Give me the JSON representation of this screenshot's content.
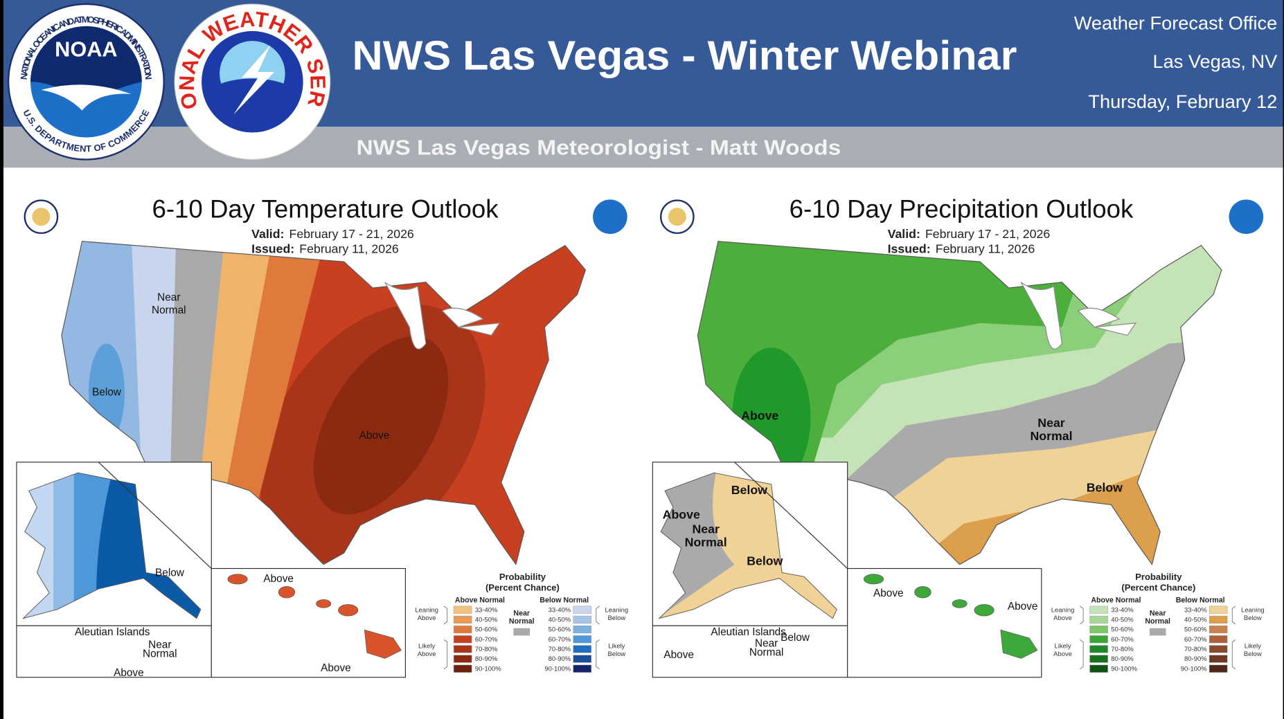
{
  "header": {
    "title": "NWS Las Vegas - Winter Webinar",
    "office": [
      "Weather Forecast Office",
      "Las Vegas, NV",
      "Thursday, February 12"
    ],
    "subtitle": "NWS Las Vegas Meteorologist - Matt Woods",
    "noaa_logo": {
      "name": "NOAA",
      "ring_top": "NATIONAL OCEANIC AND ATMOSPHERIC ADMINISTRATION",
      "ring_bottom": "U.S. DEPARTMENT OF COMMERCE"
    },
    "nws_logo": {
      "ring": "NATIONAL WEATHER SERVICE"
    }
  },
  "panels": [
    {
      "title": "6-10 Day Temperature Outlook",
      "valid_label": "Valid:",
      "valid": "February 17 - 21, 2026",
      "issued_label": "Issued:",
      "issued": "February 11, 2026",
      "map_labels": [
        [
          "Near",
          "Normal"
        ],
        [
          "Below"
        ],
        [
          "Above"
        ],
        [
          "Below"
        ],
        [
          "Above"
        ],
        [
          "Above"
        ],
        [
          "Aleutian Islands"
        ],
        [
          "Near",
          "Normal"
        ],
        [
          "Above"
        ]
      ],
      "legend": {
        "title": "Probability",
        "subtitle": "(Percent Chance)",
        "above_title": "Above Normal",
        "below_title": "Below Normal",
        "near": [
          "Near",
          "Normal"
        ],
        "above_ranges": [
          "33-40%",
          "40-50%",
          "50-60%",
          "60-70%",
          "70-80%",
          "80-90%",
          "90-100%"
        ],
        "below_ranges": [
          "33-40%",
          "40-50%",
          "50-60%",
          "60-70%",
          "70-80%",
          "80-90%",
          "90-100%"
        ],
        "leaning_above": [
          "Leaning",
          "Above"
        ],
        "likely_above": [
          "Likely",
          "Above"
        ],
        "leaning_below": [
          "Leaning",
          "Below"
        ],
        "likely_below": [
          "Likely",
          "Below"
        ]
      }
    },
    {
      "title": "6-10 Day Precipitation Outlook",
      "valid_label": "Valid:",
      "valid": "February 17 - 21, 2026",
      "issued_label": "Issued:",
      "issued": "February 11, 2026",
      "map_labels": [
        [
          "Above"
        ],
        [
          "Near",
          "Normal"
        ],
        [
          "Below"
        ],
        [
          "Below"
        ],
        [
          "Above"
        ],
        [
          "Near",
          "Normal"
        ],
        [
          "Below"
        ],
        [
          "Above"
        ],
        [
          "Above"
        ],
        [
          "Aleutian Islands"
        ],
        [
          "Below"
        ],
        [
          "Near",
          "Normal"
        ],
        [
          "Above"
        ]
      ],
      "legend": {
        "title": "Probability",
        "subtitle": "(Percent Chance)",
        "above_title": "Above Normal",
        "below_title": "Below Normal",
        "near": [
          "Near",
          "Normal"
        ],
        "above_ranges": [
          "33-40%",
          "40-50%",
          "50-60%",
          "60-70%",
          "70-80%",
          "80-90%",
          "90-100%"
        ],
        "below_ranges": [
          "33-40%",
          "40-50%",
          "50-60%",
          "60-70%",
          "70-80%",
          "80-90%",
          "90-100%"
        ],
        "leaning_above": [
          "Leaning",
          "Above"
        ],
        "likely_above": [
          "Likely",
          "Above"
        ],
        "leaning_below": [
          "Leaning",
          "Below"
        ],
        "likely_below": [
          "Likely",
          "Below"
        ]
      }
    }
  ]
}
